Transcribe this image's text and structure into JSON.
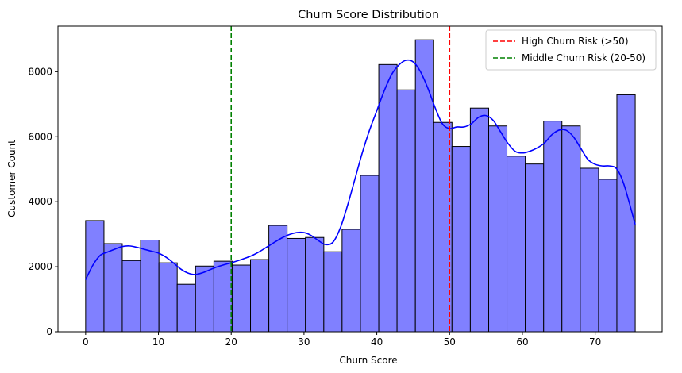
{
  "chart_data": {
    "type": "bar",
    "title": "Churn Score Distribution",
    "xlabel": "Churn Score",
    "ylabel": "Customer Count",
    "xlim": [
      -3.8,
      79.2
    ],
    "ylim": [
      0,
      9400
    ],
    "xticks": [
      0,
      10,
      20,
      30,
      40,
      50,
      60,
      70
    ],
    "yticks": [
      0,
      2000,
      4000,
      6000,
      8000
    ],
    "grid": false,
    "legend_position": "top-right",
    "bin_edges": [
      0,
      2.52,
      5.03,
      7.55,
      10.07,
      12.58,
      15.1,
      17.62,
      20.13,
      22.65,
      25.17,
      27.68,
      30.2,
      32.72,
      35.23,
      37.75,
      40.27,
      42.78,
      45.3,
      47.82,
      50.33,
      52.85,
      55.37,
      57.88,
      60.4,
      62.92,
      65.43,
      67.95,
      70.47,
      72.98,
      75.5
    ],
    "counts": [
      3420,
      2710,
      2190,
      2820,
      2120,
      1460,
      2020,
      2170,
      2050,
      2220,
      3270,
      2870,
      2900,
      2460,
      3150,
      4810,
      8220,
      7440,
      8980,
      6440,
      5700,
      6880,
      6330,
      5400,
      5160,
      6480,
      6330,
      5030,
      4690,
      7290
    ],
    "kde": {
      "x": [
        0,
        1,
        2,
        3,
        4,
        5,
        6,
        7,
        8,
        9,
        10,
        11,
        12,
        13,
        14,
        15,
        16,
        17,
        18,
        19,
        20,
        21,
        22,
        23,
        24,
        25,
        26,
        27,
        28,
        29,
        30,
        31,
        32,
        33,
        34,
        35,
        36,
        37,
        38,
        39,
        40,
        41,
        42,
        43,
        44,
        45,
        46,
        47,
        48,
        49,
        50,
        51,
        52,
        53,
        54,
        55,
        56,
        57,
        58,
        59,
        60,
        61,
        62,
        63,
        64,
        65,
        66,
        67,
        68,
        69,
        70,
        71,
        72,
        73,
        74,
        75.5
      ],
      "y": [
        1600,
        2050,
        2350,
        2450,
        2540,
        2620,
        2640,
        2600,
        2540,
        2480,
        2420,
        2300,
        2130,
        1940,
        1810,
        1760,
        1810,
        1900,
        1990,
        2060,
        2120,
        2190,
        2270,
        2360,
        2480,
        2620,
        2760,
        2890,
        2990,
        3050,
        3050,
        2960,
        2800,
        2680,
        2760,
        3200,
        3900,
        4700,
        5500,
        6200,
        6800,
        7400,
        7900,
        8200,
        8350,
        8300,
        8000,
        7500,
        6900,
        6400,
        6250,
        6300,
        6300,
        6400,
        6600,
        6650,
        6500,
        6150,
        5800,
        5550,
        5500,
        5550,
        5650,
        5800,
        6050,
        6200,
        6200,
        6000,
        5650,
        5300,
        5150,
        5100,
        5100,
        5000,
        4500,
        3300
      ]
    },
    "reference_lines": [
      {
        "x": 50,
        "label": "High Churn Risk (>50)",
        "color": "#d62728"
      },
      {
        "x": 20,
        "label": "Middle Churn Risk (20-50)",
        "color": "#2ca02c"
      }
    ],
    "colors": {
      "bar_fill": "#8080ff",
      "bar_edge": "#000000",
      "kde_line": "#0000ff",
      "high_line": "#ff0000",
      "middle_line": "#008000"
    }
  }
}
